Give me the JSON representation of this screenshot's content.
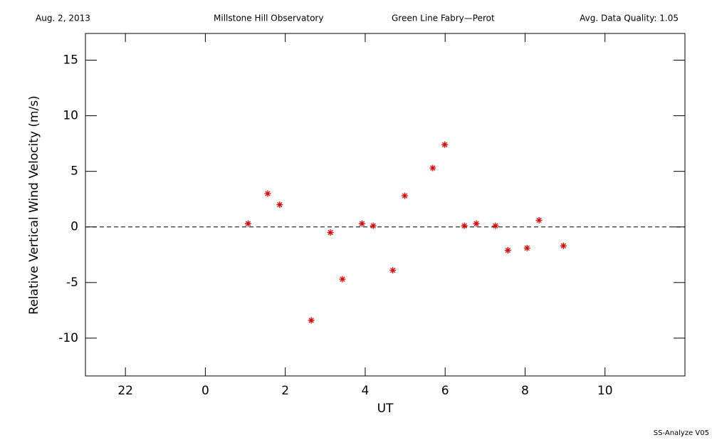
{
  "chart_data": {
    "type": "scatter",
    "header": [
      "Aug. 2, 2013",
      "Millstone Hill Observatory",
      "Green Line Fabry—Perot",
      "Avg. Data Quality: 1.05"
    ],
    "footer": "SS-Analyze V05",
    "xlabel": "UT",
    "ylabel": "Relative Vertical Wind Velocity (m/s)",
    "x": [
      1.07,
      1.56,
      1.86,
      2.65,
      3.13,
      3.43,
      3.92,
      4.2,
      4.69,
      4.99,
      5.69,
      5.99,
      6.48,
      6.78,
      7.26,
      7.57,
      8.05,
      8.35,
      8.96
    ],
    "values": [
      0.3,
      3.0,
      2.0,
      -8.4,
      -0.5,
      -4.7,
      0.3,
      0.1,
      -3.9,
      2.8,
      5.3,
      7.4,
      0.1,
      0.3,
      0.1,
      -2.1,
      -1.9,
      0.6,
      -1.7
    ],
    "color": "#e00000",
    "xlim": [
      -3,
      12
    ],
    "xticks": [
      {
        "value": -2,
        "label": "22"
      },
      0,
      2,
      4,
      6,
      8,
      10
    ],
    "ylim": [
      -13.4,
      17.4
    ],
    "yticks": [
      -10,
      -5,
      0,
      5,
      10,
      15
    ],
    "reference_line": 0
  }
}
